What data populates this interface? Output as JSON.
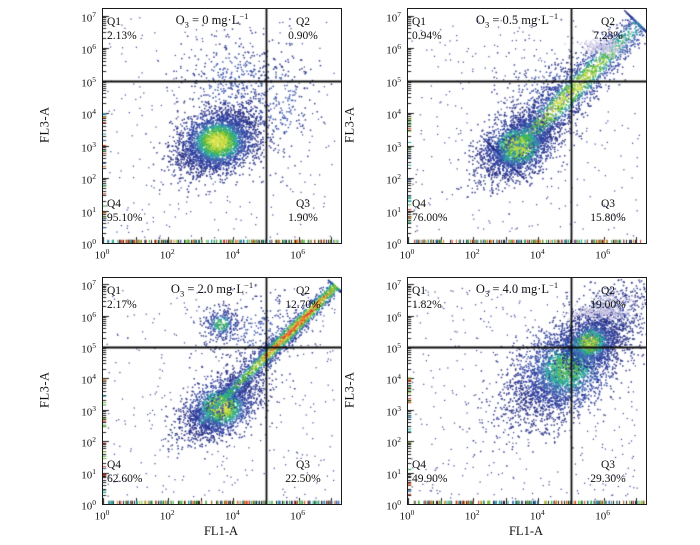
{
  "figure": {
    "ylabel": "FL3-A",
    "xlabel": "FL1-A",
    "tick_base": "10",
    "x_tick_exponents": [
      0,
      2,
      4,
      6
    ],
    "y_tick_exponents": [
      0,
      1,
      2,
      3,
      4,
      5,
      6,
      7
    ]
  },
  "colors": {
    "box_border": "#1a1a1a",
    "gate_line": "#0d0d0d",
    "tick": "#222222",
    "rug_colors": [
      "#e07820",
      "#d33a2a",
      "#3fae49",
      "#2aa5a0",
      "#3e64b0",
      "#8dc63f"
    ],
    "palettes": {
      "standard": [
        [
          0.93,
          "#d9e34b"
        ],
        [
          0.84,
          "#a6ce39"
        ],
        [
          0.72,
          "#4db848"
        ],
        [
          0.6,
          "#2aa5a0"
        ],
        [
          0.45,
          "#3e64b0"
        ],
        [
          0.22,
          "#2e3f9e"
        ],
        [
          0,
          "#262f86"
        ]
      ],
      "redcore": [
        [
          0.955,
          "#e23d2e"
        ],
        [
          0.9,
          "#f58220"
        ],
        [
          0.84,
          "#d9e34b"
        ],
        [
          0.74,
          "#8dc63f"
        ],
        [
          0.62,
          "#3fae49"
        ],
        [
          0.5,
          "#2aa5a0"
        ],
        [
          0.32,
          "#3e64b0"
        ],
        [
          0,
          "#2c3a96"
        ]
      ],
      "blue": [
        [
          0.55,
          "#3a53ad"
        ],
        [
          0,
          "#283389"
        ]
      ],
      "lavender": [
        [
          0,
          "#cfc9e6"
        ]
      ]
    }
  },
  "chart_data": [
    {
      "type": "scatter",
      "title": "O3 = 0 mg·L−1",
      "title_parts": {
        "el": "O",
        "sub": "3",
        "rest": " = 0 mg·L",
        "sup": "−1"
      },
      "xlabel": "",
      "ylabel": "FL3-A",
      "x_log_range": [
        0,
        7.3
      ],
      "y_log_range": [
        0,
        7.2
      ],
      "gate_x_log": 5,
      "gate_y_log": 5,
      "quadrants": {
        "q1": {
          "label": "Q1",
          "pct": "2.13%"
        },
        "q2": {
          "label": "Q2",
          "pct": "0.90%"
        },
        "q3": {
          "label": "Q3",
          "pct": "1.90%"
        },
        "q4": {
          "label": "Q4",
          "pct": "95.10%"
        }
      },
      "seed": 11,
      "clusters": [
        {
          "kind": "uniform",
          "n": 260
        },
        {
          "kind": "gauss",
          "cx": 3.9,
          "cy": 5.0,
          "sx": 0.75,
          "sy": 0.7,
          "rho": 0.1,
          "n": 330,
          "palette": "blue",
          "wscale": 1
        },
        {
          "kind": "gauss",
          "cx": 5.3,
          "cy": 4.3,
          "sx": 0.6,
          "sy": 0.9,
          "rho": 0.2,
          "n": 260,
          "palette": "blue",
          "wscale": 1
        },
        {
          "kind": "gauss",
          "cx": 3.5,
          "cy": 3.15,
          "sx": 0.62,
          "sy": 0.5,
          "rho": 0.35,
          "n": 3300,
          "palette": "standard",
          "wscale": 1
        }
      ]
    },
    {
      "type": "scatter",
      "title": "O3 = 0.5 mg·L−1",
      "title_parts": {
        "el": "O",
        "sub": "3",
        "rest": " = 0.5 mg·L",
        "sup": "−1"
      },
      "xlabel": "",
      "ylabel": "FL3-A",
      "x_log_range": [
        0,
        7.3
      ],
      "y_log_range": [
        0,
        7.2
      ],
      "gate_x_log": 5,
      "gate_y_log": 5,
      "quadrants": {
        "q1": {
          "label": "Q1",
          "pct": "0.94%"
        },
        "q2": {
          "label": "Q2",
          "pct": "7.23%"
        },
        "q3": {
          "label": "Q3",
          "pct": "15.80%"
        },
        "q4": {
          "label": "Q4",
          "pct": "76.00%"
        }
      },
      "seed": 22,
      "clusters": [
        {
          "kind": "uniform",
          "n": 300
        },
        {
          "kind": "gauss",
          "cx": 4.3,
          "cy": 4.6,
          "sx": 0.8,
          "sy": 0.7,
          "rho": 0.3,
          "n": 300,
          "palette": "blue",
          "wscale": 1
        },
        {
          "kind": "gauss",
          "cx": 3.35,
          "cy": 3.0,
          "sx": 0.6,
          "sy": 0.5,
          "rho": 0.45,
          "n": 2400,
          "palette": "standard",
          "wscale": 0.97
        },
        {
          "kind": "band",
          "x1": 2.9,
          "y1": 2.55,
          "x2": 7.05,
          "y2": 6.75,
          "sp": 0.3,
          "peak": 0.5,
          "spread": 0.42,
          "n": 2400,
          "palette": "standard",
          "wscale": 0.95
        },
        {
          "kind": "gauss",
          "cx": 6.0,
          "cy": 6.05,
          "sx": 0.35,
          "sy": 0.12,
          "rho": 0,
          "n": 200,
          "palette": "lavender",
          "wscale": 1
        }
      ]
    },
    {
      "type": "scatter",
      "title": "O3 = 2.0 mg·L−1",
      "title_parts": {
        "el": "O",
        "sub": "3",
        "rest": " = 2.0 mg·L",
        "sup": "−1"
      },
      "xlabel": "FL1-A",
      "ylabel": "FL3-A",
      "x_log_range": [
        0,
        7.3
      ],
      "y_log_range": [
        0,
        7.2
      ],
      "gate_x_log": 5,
      "gate_y_log": 5,
      "quadrants": {
        "q1": {
          "label": "Q1",
          "pct": "2.17%"
        },
        "q2": {
          "label": "Q2",
          "pct": "12.70%"
        },
        "q3": {
          "label": "Q3",
          "pct": "22.50%"
        },
        "q4": {
          "label": "Q4",
          "pct": "62.60%"
        }
      },
      "seed": 33,
      "clusters": [
        {
          "kind": "uniform",
          "n": 320
        },
        {
          "kind": "gauss",
          "cx": 4.7,
          "cy": 5.5,
          "sx": 0.85,
          "sy": 0.6,
          "rho": 0.2,
          "n": 260,
          "palette": "blue",
          "wscale": 1
        },
        {
          "kind": "gauss",
          "cx": 3.6,
          "cy": 3.1,
          "sx": 0.58,
          "sy": 0.5,
          "rho": 0.45,
          "n": 2200,
          "palette": "standard",
          "wscale": 0.97
        },
        {
          "kind": "gauss",
          "cx": 3.6,
          "cy": 5.75,
          "sx": 0.3,
          "sy": 0.27,
          "rho": 0,
          "n": 300,
          "palette": "standard",
          "wscale": 0.8
        },
        {
          "kind": "band",
          "x1": 2.95,
          "y1": 2.6,
          "x2": 7.1,
          "y2": 6.95,
          "sp": 0.14,
          "peak": 0.68,
          "spread": 0.42,
          "n": 2600,
          "palette": "redcore",
          "wscale": 1
        }
      ]
    },
    {
      "type": "scatter",
      "title": "O3 = 4.0 mg·L−1",
      "title_parts": {
        "el": "O",
        "sub": "3",
        "rest": " = 4.0 mg·L",
        "sup": "−1"
      },
      "xlabel": "FL1-A",
      "ylabel": "FL3-A",
      "x_log_range": [
        0,
        7.3
      ],
      "y_log_range": [
        0,
        7.2
      ],
      "gate_x_log": 5,
      "gate_y_log": 5,
      "quadrants": {
        "q1": {
          "label": "Q1",
          "pct": "1.82%"
        },
        "q2": {
          "label": "Q2",
          "pct": "19.00%"
        },
        "q3": {
          "label": "Q3",
          "pct": "29.30%"
        },
        "q4": {
          "label": "Q4",
          "pct": "49.90%"
        }
      },
      "seed": 44,
      "clusters": [
        {
          "kind": "uniform",
          "n": 380
        },
        {
          "kind": "gauss",
          "cx": 6.3,
          "cy": 6.2,
          "sx": 0.55,
          "sy": 0.5,
          "rho": 0.3,
          "n": 350,
          "palette": "blue",
          "wscale": 1
        },
        {
          "kind": "gauss",
          "cx": 4.85,
          "cy": 4.35,
          "sx": 0.9,
          "sy": 0.85,
          "rho": 0.55,
          "n": 3600,
          "palette": "standard",
          "wscale": 0.78
        },
        {
          "kind": "gauss",
          "cx": 5.55,
          "cy": 5.15,
          "sx": 0.5,
          "sy": 0.45,
          "rho": 0.4,
          "n": 1100,
          "palette": "standard",
          "wscale": 0.9
        },
        {
          "kind": "gauss",
          "cx": 5.9,
          "cy": 6.15,
          "sx": 0.5,
          "sy": 0.13,
          "rho": 0,
          "n": 230,
          "palette": "lavender",
          "wscale": 1
        },
        {
          "kind": "gauss",
          "cx": 6.35,
          "cy": 6.5,
          "sx": 0.3,
          "sy": 0.1,
          "rho": 0,
          "n": 80,
          "palette": "lavender",
          "wscale": 1
        }
      ]
    }
  ]
}
